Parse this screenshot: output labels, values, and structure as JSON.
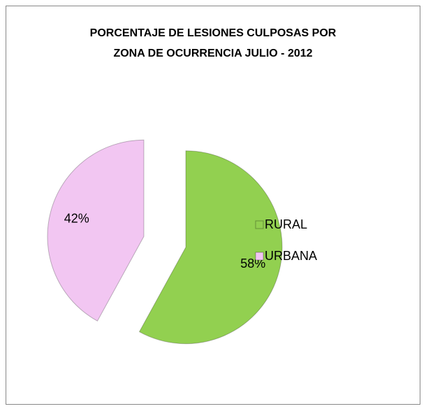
{
  "chart_data": {
    "type": "pie",
    "title": [
      "PORCENTAJE DE LESIONES CULPOSAS POR",
      "ZONA DE OCURRENCIA JULIO - 2012"
    ],
    "categories": [
      "RURAL",
      "URBANA"
    ],
    "values": [
      58,
      42
    ],
    "value_labels": [
      "58%",
      "42%"
    ],
    "colors": [
      "#92d050",
      "#f2c6f2"
    ],
    "legend": "right"
  }
}
